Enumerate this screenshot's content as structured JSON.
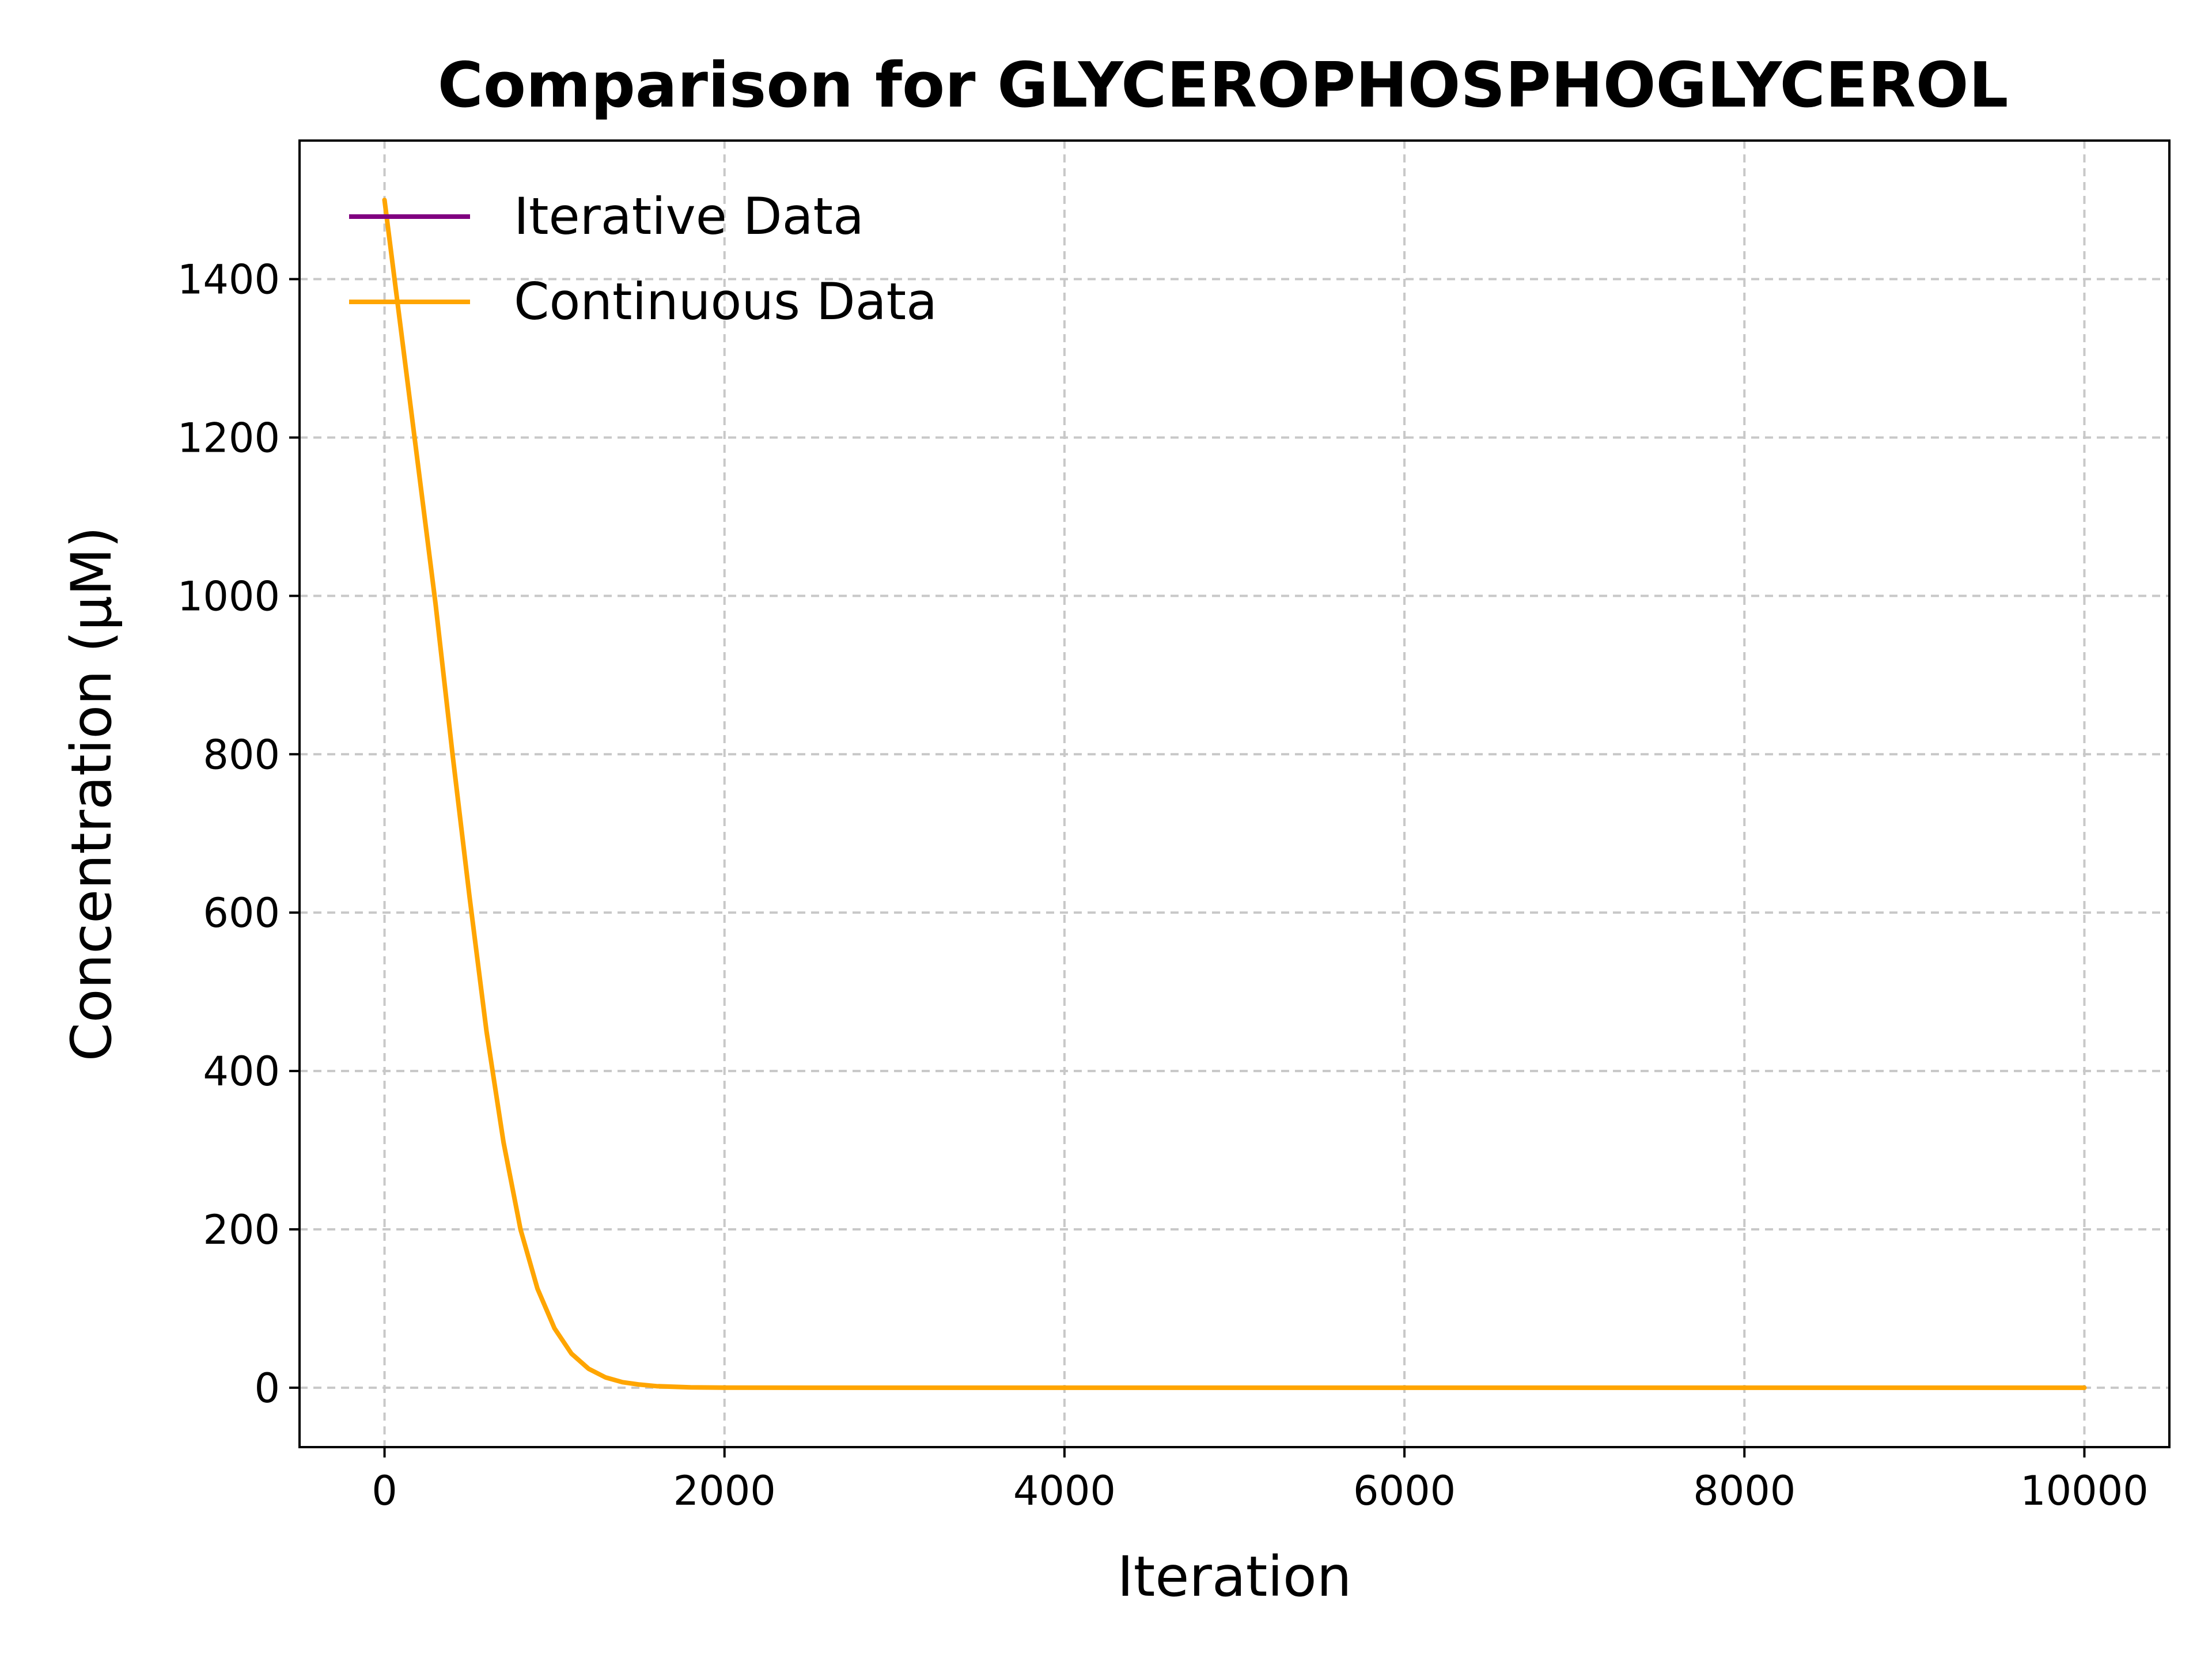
{
  "chart_data": {
    "type": "line",
    "title": "Comparison for GLYCEROPHOSPHOGLYCEROL",
    "xlabel": "Iteration",
    "ylabel": "Concentration (μM)",
    "xlim": [
      -500,
      10500
    ],
    "ylim": [
      -75,
      1575
    ],
    "xticks": [
      0,
      2000,
      4000,
      6000,
      8000,
      10000
    ],
    "yticks": [
      0,
      200,
      400,
      600,
      800,
      1000,
      1200,
      1400
    ],
    "grid": true,
    "legend_position": "upper-left",
    "series": [
      {
        "name": "Iterative Data",
        "color": "#800080",
        "x": [],
        "y": []
      },
      {
        "name": "Continuous Data",
        "color": "#FFA500",
        "x": [
          0,
          100,
          200,
          300,
          400,
          500,
          600,
          700,
          800,
          900,
          1000,
          1100,
          1200,
          1300,
          1400,
          1500,
          1600,
          1800,
          2000,
          2500,
          3000,
          4000,
          5000,
          6000,
          7000,
          8000,
          9000,
          10000
        ],
        "y": [
          1500,
          1330,
          1160,
          990,
          800,
          620,
          450,
          310,
          200,
          125,
          75,
          43,
          24,
          13,
          7,
          4,
          2,
          0.5,
          0.1,
          0,
          0,
          0,
          0,
          0,
          0,
          0,
          0,
          0
        ]
      }
    ]
  }
}
